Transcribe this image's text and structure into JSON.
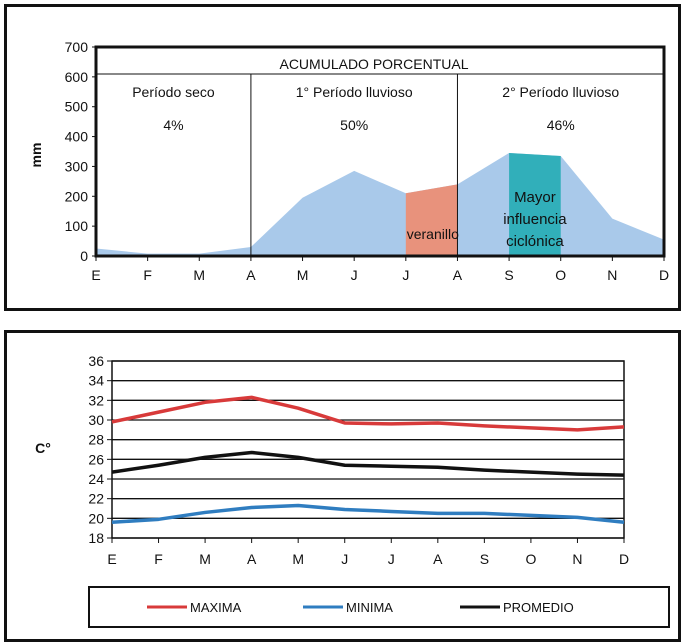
{
  "precipitation": {
    "ylabel": "mm",
    "ylim": [
      0,
      700
    ],
    "yticks": [
      "0",
      "100",
      "200",
      "300",
      "400",
      "500",
      "600",
      "700"
    ],
    "months": [
      "E",
      "F",
      "M",
      "A",
      "M",
      "J",
      "J",
      "A",
      "S",
      "O",
      "N",
      "D"
    ],
    "header": "ACUMULADO PORCENTUAL",
    "periods": [
      {
        "label": "Período seco",
        "percent": "4%"
      },
      {
        "label": "1° Período lluvioso",
        "percent": "50%"
      },
      {
        "label": "2° Período lluvioso",
        "percent": "46%"
      }
    ],
    "annotations": {
      "veranillo": "veranillo",
      "ciclonica": [
        "Mayor",
        "influencia",
        "ciclónica"
      ]
    },
    "colors": {
      "area": "#a9c9ea",
      "veranillo": "#e8927c",
      "ciclonica": "#31afba"
    }
  },
  "temperature": {
    "ylabel": "C°",
    "ylim": [
      18,
      36
    ],
    "yticks": [
      "18",
      "20",
      "22",
      "24",
      "26",
      "28",
      "30",
      "32",
      "34",
      "36"
    ],
    "months": [
      "E",
      "F",
      "M",
      "A",
      "M",
      "J",
      "J",
      "A",
      "S",
      "O",
      "N",
      "D"
    ],
    "legend": {
      "max": "MAXIMA",
      "min": "MINIMA",
      "avg": "PROMEDIO"
    },
    "colors": {
      "max": "#d83a3a",
      "min": "#2f7dc0",
      "avg": "#111111"
    }
  },
  "chart_data": [
    {
      "type": "area",
      "categories": [
        "E",
        "F",
        "M",
        "A",
        "M",
        "J",
        "J",
        "A",
        "S",
        "O",
        "N",
        "D"
      ],
      "values": [
        25,
        8,
        8,
        30,
        195,
        285,
        210,
        240,
        345,
        335,
        125,
        55
      ],
      "ylabel": "mm",
      "ylim": [
        0,
        700
      ],
      "grid": false
    },
    {
      "type": "line",
      "categories": [
        "E",
        "F",
        "M",
        "A",
        "M",
        "J",
        "J",
        "A",
        "S",
        "O",
        "N",
        "D"
      ],
      "series": [
        {
          "name": "MAXIMA",
          "values": [
            29.8,
            30.8,
            31.8,
            32.3,
            31.2,
            29.7,
            29.6,
            29.7,
            29.4,
            29.2,
            29.0,
            29.3
          ]
        },
        {
          "name": "MINIMA",
          "values": [
            19.6,
            19.9,
            20.6,
            21.1,
            21.3,
            20.9,
            20.7,
            20.5,
            20.5,
            20.3,
            20.1,
            19.6
          ]
        },
        {
          "name": "PROMEDIO",
          "values": [
            24.7,
            25.4,
            26.2,
            26.7,
            26.2,
            25.4,
            25.3,
            25.2,
            24.9,
            24.7,
            24.5,
            24.4
          ]
        }
      ],
      "ylabel": "C°",
      "ylim": [
        18,
        36
      ],
      "grid": true,
      "legend": "bottom"
    }
  ]
}
